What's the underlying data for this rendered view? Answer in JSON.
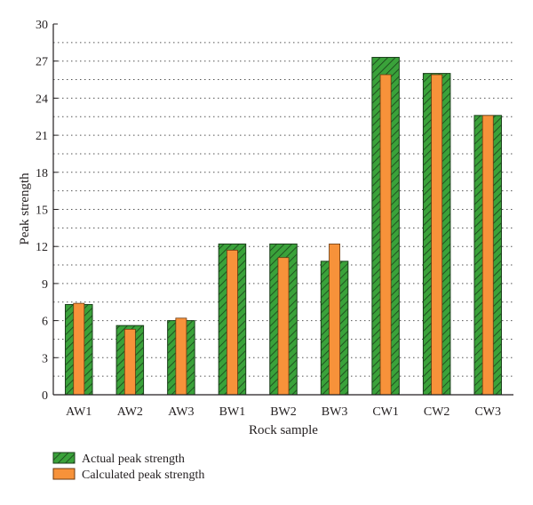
{
  "chart_data": {
    "type": "bar",
    "title": "",
    "xlabel": "Rock sample",
    "ylabel": "Peak strength",
    "ylim": [
      0,
      30
    ],
    "yticks": [
      0,
      3,
      6,
      9,
      12,
      15,
      18,
      21,
      24,
      27,
      30
    ],
    "grid": "horizontal dotted",
    "legend_position": "bottom-left",
    "categories": [
      "AW1",
      "AW2",
      "AW3",
      "BW1",
      "BW2",
      "BW3",
      "CW1",
      "CW2",
      "CW3"
    ],
    "series": [
      {
        "name": "Actual peak strength",
        "color": "#3aa23a",
        "pattern": "diagonal hatch",
        "values": [
          7.3,
          5.6,
          6.0,
          12.2,
          12.2,
          10.8,
          27.3,
          26.0,
          22.6
        ]
      },
      {
        "name": "Calculated peak strength",
        "color": "#f7923a",
        "pattern": "solid",
        "values": [
          7.4,
          5.3,
          6.2,
          11.7,
          11.1,
          12.2,
          25.9,
          25.9,
          22.6
        ]
      }
    ]
  }
}
